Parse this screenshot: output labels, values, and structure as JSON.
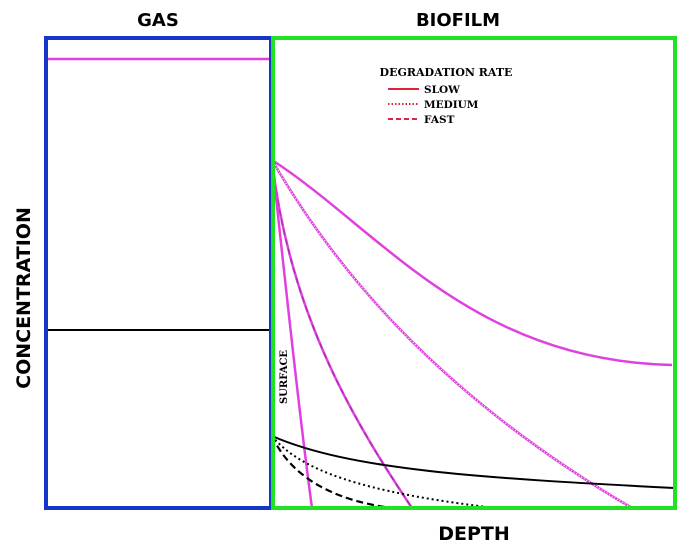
{
  "labels": {
    "gas": "GAS",
    "biofilm": "BIOFILM",
    "x_axis": "DEPTH",
    "y_axis": "CONCENTRATION",
    "surface": "SURFACE"
  },
  "legend": {
    "title": "DEGRADATION RATE",
    "items": [
      {
        "label": "SLOW",
        "style": "solid"
      },
      {
        "label": "MEDIUM",
        "style": "dotted"
      },
      {
        "label": "FAST",
        "style": "dashed"
      }
    ]
  },
  "colors": {
    "gas_box": "#1536c8",
    "biofilm_box": "#22e022",
    "high_gas_profile": "#e040e0",
    "low_gas_profile": "#000000",
    "legend_swatch": "#e0223a"
  }
}
